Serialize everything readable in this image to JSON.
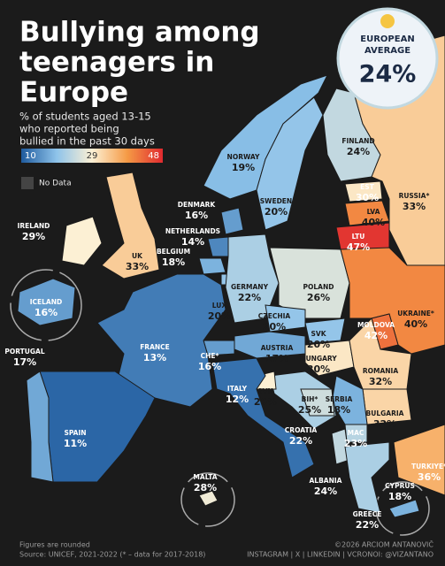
{
  "header": {
    "title_lines": [
      "Bullying among",
      "teenagers in",
      "Europe"
    ],
    "subtitle_lines": [
      "% of students aged 13-15",
      "who reported being",
      "bullied in the past 30 days"
    ]
  },
  "legend": {
    "min": 10,
    "mid": 29,
    "max": 48,
    "no_data": "No Data"
  },
  "badge": {
    "label_lines": [
      "EUROPEAN",
      "AVERAGE"
    ],
    "value": 24,
    "value_label": "24%"
  },
  "countries": [
    {
      "name": "NORWAY",
      "value": 19,
      "value_label": "19%"
    },
    {
      "name": "SWEDEN",
      "value": 20,
      "value_label": "20%"
    },
    {
      "name": "FINLAND",
      "value": 24,
      "value_label": "24%"
    },
    {
      "name": "RUSSIA*",
      "value": 33,
      "value_label": "33%"
    },
    {
      "name": "EST",
      "value": 30,
      "value_label": "30%"
    },
    {
      "name": "LVA",
      "value": 40,
      "value_label": "40%"
    },
    {
      "name": "LTU",
      "value": 47,
      "value_label": "47%"
    },
    {
      "name": "DENMARK",
      "value": 16,
      "value_label": "16%"
    },
    {
      "name": "NETHERLANDS",
      "value": 14,
      "value_label": "14%"
    },
    {
      "name": "BELGIUM",
      "value": 18,
      "value_label": "18%"
    },
    {
      "name": "LUX",
      "value": 20,
      "value_label": "20%"
    },
    {
      "name": "IRELAND",
      "value": 29,
      "value_label": "29%"
    },
    {
      "name": "UK",
      "value": 33,
      "value_label": "33%"
    },
    {
      "name": "ICELAND",
      "value": 16,
      "value_label": "16%"
    },
    {
      "name": "GERMANY",
      "value": 22,
      "value_label": "22%"
    },
    {
      "name": "POLAND",
      "value": 26,
      "value_label": "26%"
    },
    {
      "name": "CZECHIA",
      "value": 20,
      "value_label": "20%"
    },
    {
      "name": "SVK",
      "value": 20,
      "value_label": "20%"
    },
    {
      "name": "AUSTRIA",
      "value": 17,
      "value_label": "17%"
    },
    {
      "name": "HUNGARY",
      "value": 30,
      "value_label": "30%"
    },
    {
      "name": "UKRAINE*",
      "value": 40,
      "value_label": "40%"
    },
    {
      "name": "MOLDOVA",
      "value": 42,
      "value_label": "42%"
    },
    {
      "name": "ROMANIA",
      "value": 32,
      "value_label": "32%"
    },
    {
      "name": "BULGARIA",
      "value": 32,
      "value_label": "32%"
    },
    {
      "name": "SERBIA",
      "value": 18,
      "value_label": "18%"
    },
    {
      "name": "CROATIA",
      "value": 22,
      "value_label": "22%"
    },
    {
      "name": "SVN",
      "value": 29,
      "value_label": "29%"
    },
    {
      "name": "BIH*",
      "value": 25,
      "value_label": "25%"
    },
    {
      "name": "MAC",
      "value": 23,
      "value_label": "23%"
    },
    {
      "name": "ALBANIA",
      "value": 24,
      "value_label": "24%"
    },
    {
      "name": "GREECE",
      "value": 22,
      "value_label": "22%"
    },
    {
      "name": "TURKIYE*",
      "value": 36,
      "value_label": "36%"
    },
    {
      "name": "CHE*",
      "value": 16,
      "value_label": "16%"
    },
    {
      "name": "FRANCE",
      "value": 13,
      "value_label": "13%"
    },
    {
      "name": "ITALY",
      "value": 12,
      "value_label": "12%"
    },
    {
      "name": "SPAIN",
      "value": 11,
      "value_label": "11%"
    },
    {
      "name": "PORTUGAL",
      "value": 17,
      "value_label": "17%"
    },
    {
      "name": "MALTA",
      "value": 28,
      "value_label": "28%"
    },
    {
      "name": "CYPRUS",
      "value": 18,
      "value_label": "18%"
    }
  ],
  "footer": {
    "note": "Figures are rounded",
    "source": "Source: UNICEF, 2021-2022 (* – data for 2017-2018)",
    "credit": "©2026 ARCIOM ANTANOVIČ",
    "social": "INSTAGRAM | X | LINKEDIN | VCRONOI: @VIZANTANO"
  }
}
